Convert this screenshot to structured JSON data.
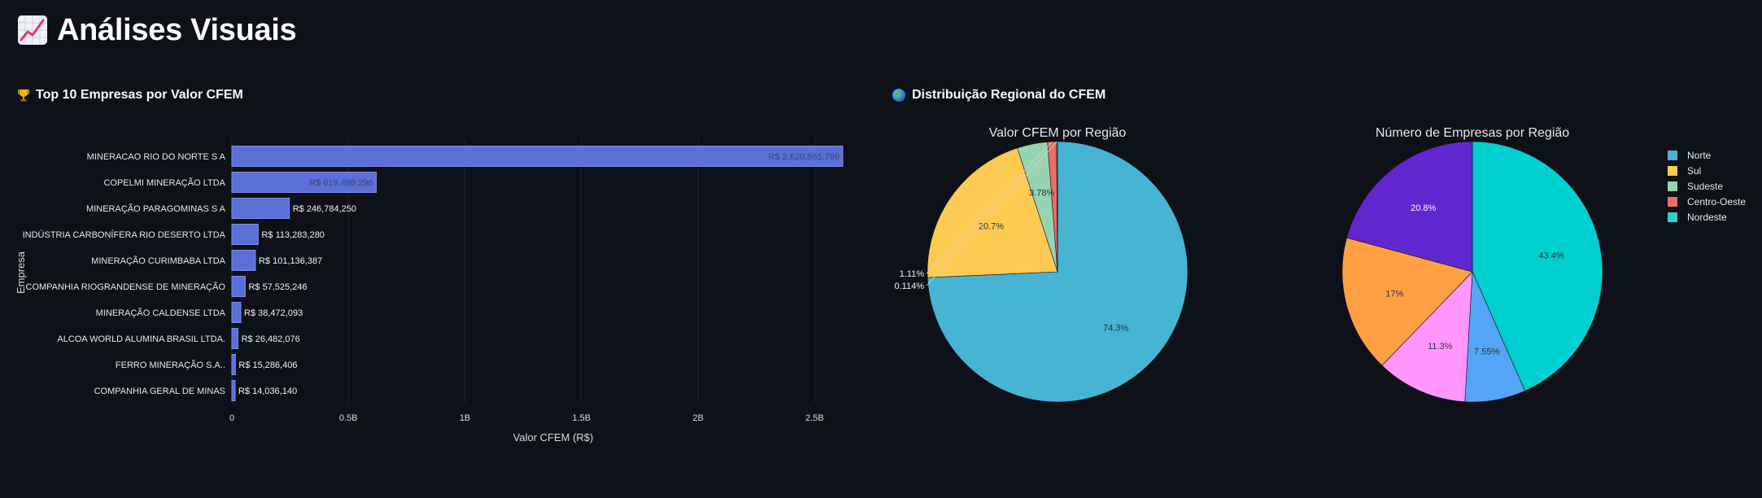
{
  "page": {
    "title": "Análises Visuais",
    "bar_section_title": "Top 10 Empresas por Valor CFEM",
    "pie_section_title": "Distribuição Regional do CFEM",
    "title_icon": "chart-increasing-icon",
    "bar_section_icon": "trophy-icon",
    "pie_section_icon": "globe-icon"
  },
  "chart_data": [
    {
      "type": "bar",
      "orientation": "horizontal",
      "xlabel": "Valor CFEM (R$)",
      "ylabel": "Empresa",
      "xlim": [
        0,
        2620861799
      ],
      "x_ticks": [
        {
          "value": 0,
          "label": "0"
        },
        {
          "value": 500000000,
          "label": "0.5B"
        },
        {
          "value": 1000000000,
          "label": "1B"
        },
        {
          "value": 1500000000,
          "label": "1.5B"
        },
        {
          "value": 2000000000,
          "label": "2B"
        },
        {
          "value": 2500000000,
          "label": "2.5B"
        }
      ],
      "bar_color": "#5b6fd6",
      "categories": [
        "MINERACAO RIO DO NORTE S A",
        "COPELMI MINERAÇÃO LTDA",
        "MINERAÇÃO PARAGOMINAS S A",
        "INDÚSTRIA CARBONÍFERA RIO DESERTO LTDA",
        "MINERAÇÃO CURIMBABA LTDA",
        "COMPANHIA RIOGRANDENSE DE MINERAÇÃO",
        "MINERAÇÃO CALDENSE LTDA",
        "ALCOA WORLD ALUMINA BRASIL LTDA.",
        "FERRO  MINERAÇÃO S.A..",
        "COMPANHIA GERAL DE MINAS"
      ],
      "values": [
        2620861799,
        619498296,
        246784250,
        113283280,
        101136387,
        57525246,
        38472093,
        26482076,
        15286406,
        14036140
      ],
      "data_labels": [
        "R$ 2,620,861,799",
        "R$ 619,498,296",
        "R$ 246,784,250",
        "R$ 113,283,280",
        "R$ 101,136,387",
        "R$ 57,525,246",
        "R$ 38,472,093",
        "R$ 26,482,076",
        "R$ 15,286,406",
        "R$ 14,036,140"
      ]
    },
    {
      "type": "pie",
      "title": "Valor CFEM por Região",
      "labels": [
        "Norte",
        "Sul",
        "Sudeste",
        "Centro-Oeste",
        "Nordeste"
      ],
      "values": [
        74.3,
        20.7,
        3.78,
        1.11,
        0.114
      ],
      "text_labels": [
        "74.3%",
        "20.7%",
        "3.78%",
        "1.11%",
        "0.114%"
      ],
      "colors": [
        "#46b4d2",
        "#fecb52",
        "#97d3b0",
        "#ef6a6a",
        "#17becf"
      ]
    },
    {
      "type": "pie",
      "title": "Número de Empresas por Região",
      "labels": [
        "Nordeste",
        "Norte",
        "Sul",
        "Sudeste",
        "Centro-Oeste"
      ],
      "values": [
        43.4,
        7.55,
        11.3,
        17,
        20.8
      ],
      "text_labels": [
        "43.4%",
        "7.55%",
        "11.3%",
        "17%",
        "20.8%"
      ],
      "colors": [
        "#00cfcf",
        "#54a5f7",
        "#ff97ff",
        "#ffa045",
        "#6027cf"
      ]
    }
  ],
  "legend": {
    "placement": "right",
    "items": [
      {
        "label": "Norte",
        "color": "#46b4d2"
      },
      {
        "label": "Sul",
        "color": "#fecb52"
      },
      {
        "label": "Sudeste",
        "color": "#97d3b0"
      },
      {
        "label": "Centro-Oeste",
        "color": "#ef6a6a"
      },
      {
        "label": "Nordeste",
        "color": "#2bd0c6"
      }
    ]
  }
}
